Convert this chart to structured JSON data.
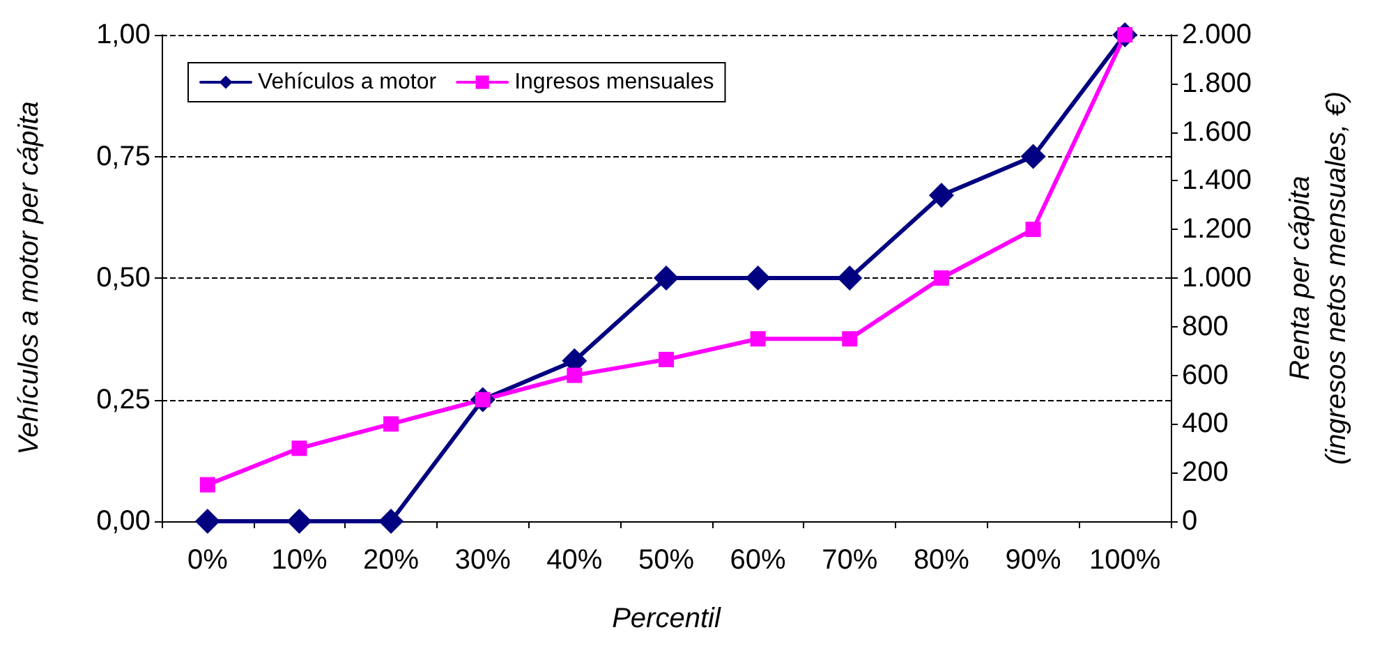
{
  "chart_data": {
    "type": "line",
    "xlabel": "Percentil",
    "ylabel": "Vehículos a motor per cápita",
    "y2label": "Renta per cápita\n(ingresos netos mensuales, €)",
    "categories": [
      "0%",
      "10%",
      "20%",
      "30%",
      "40%",
      "50%",
      "60%",
      "70%",
      "80%",
      "90%",
      "100%"
    ],
    "series": [
      {
        "name": "Vehículos a motor",
        "color": "#000080",
        "marker": "diamond",
        "values": [
          0,
          0,
          0,
          0.25,
          0.33,
          0.5,
          0.5,
          0.5,
          0.67,
          0.75,
          1.0
        ]
      },
      {
        "name": "Ingresos mensuales",
        "color": "#ff00ff",
        "marker": "square",
        "axis": "y2",
        "values": [
          150,
          300,
          400,
          500,
          600,
          665,
          750,
          750,
          1000,
          1200,
          2000
        ]
      }
    ],
    "ylim": [
      0,
      1
    ],
    "yticks": [
      {
        "value": 0,
        "label": "0,00"
      },
      {
        "value": 0.25,
        "label": "0,25"
      },
      {
        "value": 0.5,
        "label": "0,50"
      },
      {
        "value": 0.75,
        "label": "0,75"
      },
      {
        "value": 1,
        "label": "1,00"
      }
    ],
    "y2lim": [
      0,
      2000
    ],
    "y2ticks": [
      0,
      200,
      400,
      600,
      800,
      {
        "value": 1000,
        "label": "1.000"
      },
      {
        "value": 1200,
        "label": "1.200"
      },
      {
        "value": 1400,
        "label": "1.400"
      },
      {
        "value": 1600,
        "label": "1.600"
      },
      {
        "value": 1800,
        "label": "1.800"
      },
      {
        "value": 2000,
        "label": "2.000"
      }
    ],
    "grid": "y",
    "legend": "top left",
    "line_style": "solid"
  }
}
